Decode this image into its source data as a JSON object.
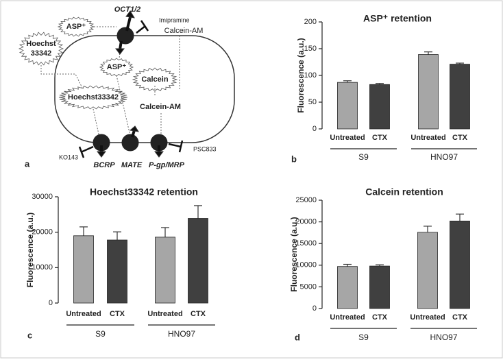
{
  "diagram": {
    "panel_label": "a",
    "oct": "OCT1/2",
    "imipramine": "Imipramine",
    "asp_out": "ASP⁺",
    "hoechst_out_1": "Hoechst",
    "hoechst_out_2": "33342",
    "calcein_am_out": "Calcein-AM",
    "asp_in": "ASP⁺",
    "calcein_in": "Calcein",
    "hoechst_in": "Hoechst33342",
    "calcein_am_in": "Calcein-AM",
    "ko143": "KO143",
    "psc833": "PSC833",
    "bcrp": "BCRP",
    "mate": "MATE",
    "pgp": "P-gp/MRP"
  },
  "chart_data": [
    {
      "type": "bar",
      "panel_label": "b",
      "title": "ASP⁺ retention",
      "y_label": "Fluorescence (a.u.)",
      "categories": [
        "Untreated",
        "CTX",
        "Untreated",
        "CTX"
      ],
      "groups": [
        "S9",
        "HNO97"
      ],
      "values": [
        87,
        83,
        139,
        121
      ],
      "errors": [
        3,
        2,
        5,
        2
      ],
      "colors": [
        "#a6a6a6",
        "#404040",
        "#a6a6a6",
        "#404040"
      ],
      "ylim": [
        0,
        200
      ],
      "yticks": [
        0,
        50,
        100,
        150,
        200
      ]
    },
    {
      "type": "bar",
      "panel_label": "c",
      "title": "Hoechst33342 retention",
      "y_label": "Fluorescence (a.u.)",
      "categories": [
        "Untreated",
        "CTX",
        "Untreated",
        "CTX"
      ],
      "groups": [
        "S9",
        "HNO97"
      ],
      "values": [
        19000,
        17800,
        18600,
        23900
      ],
      "errors": [
        2500,
        2300,
        2700,
        3600
      ],
      "colors": [
        "#a6a6a6",
        "#404040",
        "#a6a6a6",
        "#404040"
      ],
      "ylim": [
        0,
        30000
      ],
      "yticks": [
        0,
        10000,
        20000,
        30000
      ]
    },
    {
      "type": "bar",
      "panel_label": "d",
      "title": "Calcein retention",
      "y_label": "Fluorescence (a.u.)",
      "categories": [
        "Untreated",
        "CTX",
        "Untreated",
        "CTX"
      ],
      "groups": [
        "S9",
        "HNO97"
      ],
      "values": [
        9700,
        9800,
        17600,
        20200
      ],
      "errors": [
        500,
        300,
        1400,
        1600
      ],
      "colors": [
        "#a6a6a6",
        "#404040",
        "#a6a6a6",
        "#404040"
      ],
      "ylim": [
        0,
        25000
      ],
      "yticks": [
        0,
        5000,
        10000,
        15000,
        20000,
        25000
      ]
    }
  ]
}
